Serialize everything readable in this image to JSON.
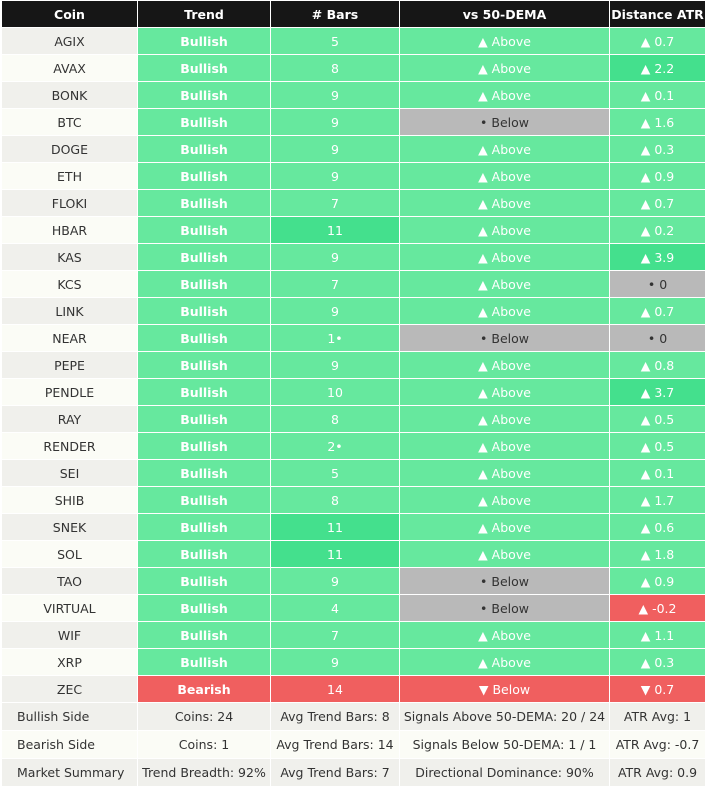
{
  "colors": {
    "header_bg": "#161616",
    "bullish": "#66e89e",
    "strong_bullish": "#44e08d",
    "bearish": "#f05f5f",
    "neutral": "#b9b9b9"
  },
  "table": {
    "headers": [
      "Coin",
      "Trend",
      "# Bars",
      "vs 50-DEMA",
      "Distance ATR"
    ],
    "rows": [
      {
        "coin": "AGIX",
        "trend": "Bullish",
        "trend_style": "bull",
        "bars": "5",
        "bars_style": "bull",
        "dema": "▲ Above",
        "dema_style": "bull",
        "atr": "▲ 0.7",
        "atr_style": "bull"
      },
      {
        "coin": "AVAX",
        "trend": "Bullish",
        "trend_style": "bull",
        "bars": "8",
        "bars_style": "bull",
        "dema": "▲ Above",
        "dema_style": "bull",
        "atr": "▲ 2.2",
        "atr_style": "strong"
      },
      {
        "coin": "BONK",
        "trend": "Bullish",
        "trend_style": "bull",
        "bars": "9",
        "bars_style": "bull",
        "dema": "▲ Above",
        "dema_style": "bull",
        "atr": "▲ 0.1",
        "atr_style": "bull"
      },
      {
        "coin": "BTC",
        "trend": "Bullish",
        "trend_style": "bull",
        "bars": "9",
        "bars_style": "bull",
        "dema": "• Below",
        "dema_style": "neutral",
        "atr": "▲ 1.6",
        "atr_style": "bull"
      },
      {
        "coin": "DOGE",
        "trend": "Bullish",
        "trend_style": "bull",
        "bars": "9",
        "bars_style": "bull",
        "dema": "▲ Above",
        "dema_style": "bull",
        "atr": "▲ 0.3",
        "atr_style": "bull"
      },
      {
        "coin": "ETH",
        "trend": "Bullish",
        "trend_style": "bull",
        "bars": "9",
        "bars_style": "bull",
        "dema": "▲ Above",
        "dema_style": "bull",
        "atr": "▲ 0.9",
        "atr_style": "bull"
      },
      {
        "coin": "FLOKI",
        "trend": "Bullish",
        "trend_style": "bull",
        "bars": "7",
        "bars_style": "bull",
        "dema": "▲ Above",
        "dema_style": "bull",
        "atr": "▲ 0.7",
        "atr_style": "bull"
      },
      {
        "coin": "HBAR",
        "trend": "Bullish",
        "trend_style": "bull",
        "bars": "11",
        "bars_style": "strong",
        "dema": "▲ Above",
        "dema_style": "bull",
        "atr": "▲ 0.2",
        "atr_style": "bull"
      },
      {
        "coin": "KAS",
        "trend": "Bullish",
        "trend_style": "bull",
        "bars": "9",
        "bars_style": "bull",
        "dema": "▲ Above",
        "dema_style": "bull",
        "atr": "▲ 3.9",
        "atr_style": "strong"
      },
      {
        "coin": "KCS",
        "trend": "Bullish",
        "trend_style": "bull",
        "bars": "7",
        "bars_style": "bull",
        "dema": "▲ Above",
        "dema_style": "bull",
        "atr": "• 0",
        "atr_style": "neutral"
      },
      {
        "coin": "LINK",
        "trend": "Bullish",
        "trend_style": "bull",
        "bars": "9",
        "bars_style": "bull",
        "dema": "▲ Above",
        "dema_style": "bull",
        "atr": "▲ 0.7",
        "atr_style": "bull"
      },
      {
        "coin": "NEAR",
        "trend": "Bullish",
        "trend_style": "bull",
        "bars": "1•",
        "bars_style": "bull",
        "dema": "• Below",
        "dema_style": "neutral",
        "atr": "• 0",
        "atr_style": "neutral"
      },
      {
        "coin": "PEPE",
        "trend": "Bullish",
        "trend_style": "bull",
        "bars": "9",
        "bars_style": "bull",
        "dema": "▲ Above",
        "dema_style": "bull",
        "atr": "▲ 0.8",
        "atr_style": "bull"
      },
      {
        "coin": "PENDLE",
        "trend": "Bullish",
        "trend_style": "bull",
        "bars": "10",
        "bars_style": "bull",
        "dema": "▲ Above",
        "dema_style": "bull",
        "atr": "▲ 3.7",
        "atr_style": "strong"
      },
      {
        "coin": "RAY",
        "trend": "Bullish",
        "trend_style": "bull",
        "bars": "8",
        "bars_style": "bull",
        "dema": "▲ Above",
        "dema_style": "bull",
        "atr": "▲ 0.5",
        "atr_style": "bull"
      },
      {
        "coin": "RENDER",
        "trend": "Bullish",
        "trend_style": "bull",
        "bars": "2•",
        "bars_style": "bull",
        "dema": "▲ Above",
        "dema_style": "bull",
        "atr": "▲ 0.5",
        "atr_style": "bull"
      },
      {
        "coin": "SEI",
        "trend": "Bullish",
        "trend_style": "bull",
        "bars": "5",
        "bars_style": "bull",
        "dema": "▲ Above",
        "dema_style": "bull",
        "atr": "▲ 0.1",
        "atr_style": "bull"
      },
      {
        "coin": "SHIB",
        "trend": "Bullish",
        "trend_style": "bull",
        "bars": "8",
        "bars_style": "bull",
        "dema": "▲ Above",
        "dema_style": "bull",
        "atr": "▲ 1.7",
        "atr_style": "bull"
      },
      {
        "coin": "SNEK",
        "trend": "Bullish",
        "trend_style": "bull",
        "bars": "11",
        "bars_style": "strong",
        "dema": "▲ Above",
        "dema_style": "bull",
        "atr": "▲ 0.6",
        "atr_style": "bull"
      },
      {
        "coin": "SOL",
        "trend": "Bullish",
        "trend_style": "bull",
        "bars": "11",
        "bars_style": "strong",
        "dema": "▲ Above",
        "dema_style": "bull",
        "atr": "▲ 1.8",
        "atr_style": "bull"
      },
      {
        "coin": "TAO",
        "trend": "Bullish",
        "trend_style": "bull",
        "bars": "9",
        "bars_style": "bull",
        "dema": "• Below",
        "dema_style": "neutral",
        "atr": "▲ 0.9",
        "atr_style": "bull"
      },
      {
        "coin": "VIRTUAL",
        "trend": "Bullish",
        "trend_style": "bull",
        "bars": "4",
        "bars_style": "bull",
        "dema": "• Below",
        "dema_style": "neutral",
        "atr": "▲ -0.2",
        "atr_style": "bear"
      },
      {
        "coin": "WIF",
        "trend": "Bullish",
        "trend_style": "bull",
        "bars": "7",
        "bars_style": "bull",
        "dema": "▲ Above",
        "dema_style": "bull",
        "atr": "▲ 1.1",
        "atr_style": "bull"
      },
      {
        "coin": "XRP",
        "trend": "Bullish",
        "trend_style": "bull",
        "bars": "9",
        "bars_style": "bull",
        "dema": "▲ Above",
        "dema_style": "bull",
        "atr": "▲ 0.3",
        "atr_style": "bull"
      },
      {
        "coin": "ZEC",
        "trend": "Bearish",
        "trend_style": "bear",
        "bars": "14",
        "bars_style": "bear",
        "dema": "▼ Below",
        "dema_style": "bear",
        "atr": "▼ 0.7",
        "atr_style": "bear"
      }
    ]
  },
  "summary": [
    {
      "label": "Bullish Side",
      "coins": "Coins: 24",
      "bars": "Avg Trend Bars: 8",
      "signals": "Signals Above 50-DEMA: 20 / 24",
      "atr": "ATR Avg: 1"
    },
    {
      "label": "Bearish Side",
      "coins": "Coins: 1",
      "bars": "Avg Trend Bars: 14",
      "signals": "Signals Below 50-DEMA: 1 / 1",
      "atr": "ATR Avg: -0.7"
    },
    {
      "label": "Market Summary",
      "coins": "Trend Breadth: 92%",
      "bars": "Avg Trend Bars: 7",
      "signals": "Directional Dominance: 90%",
      "atr": "ATR Avg: 0.9"
    }
  ]
}
